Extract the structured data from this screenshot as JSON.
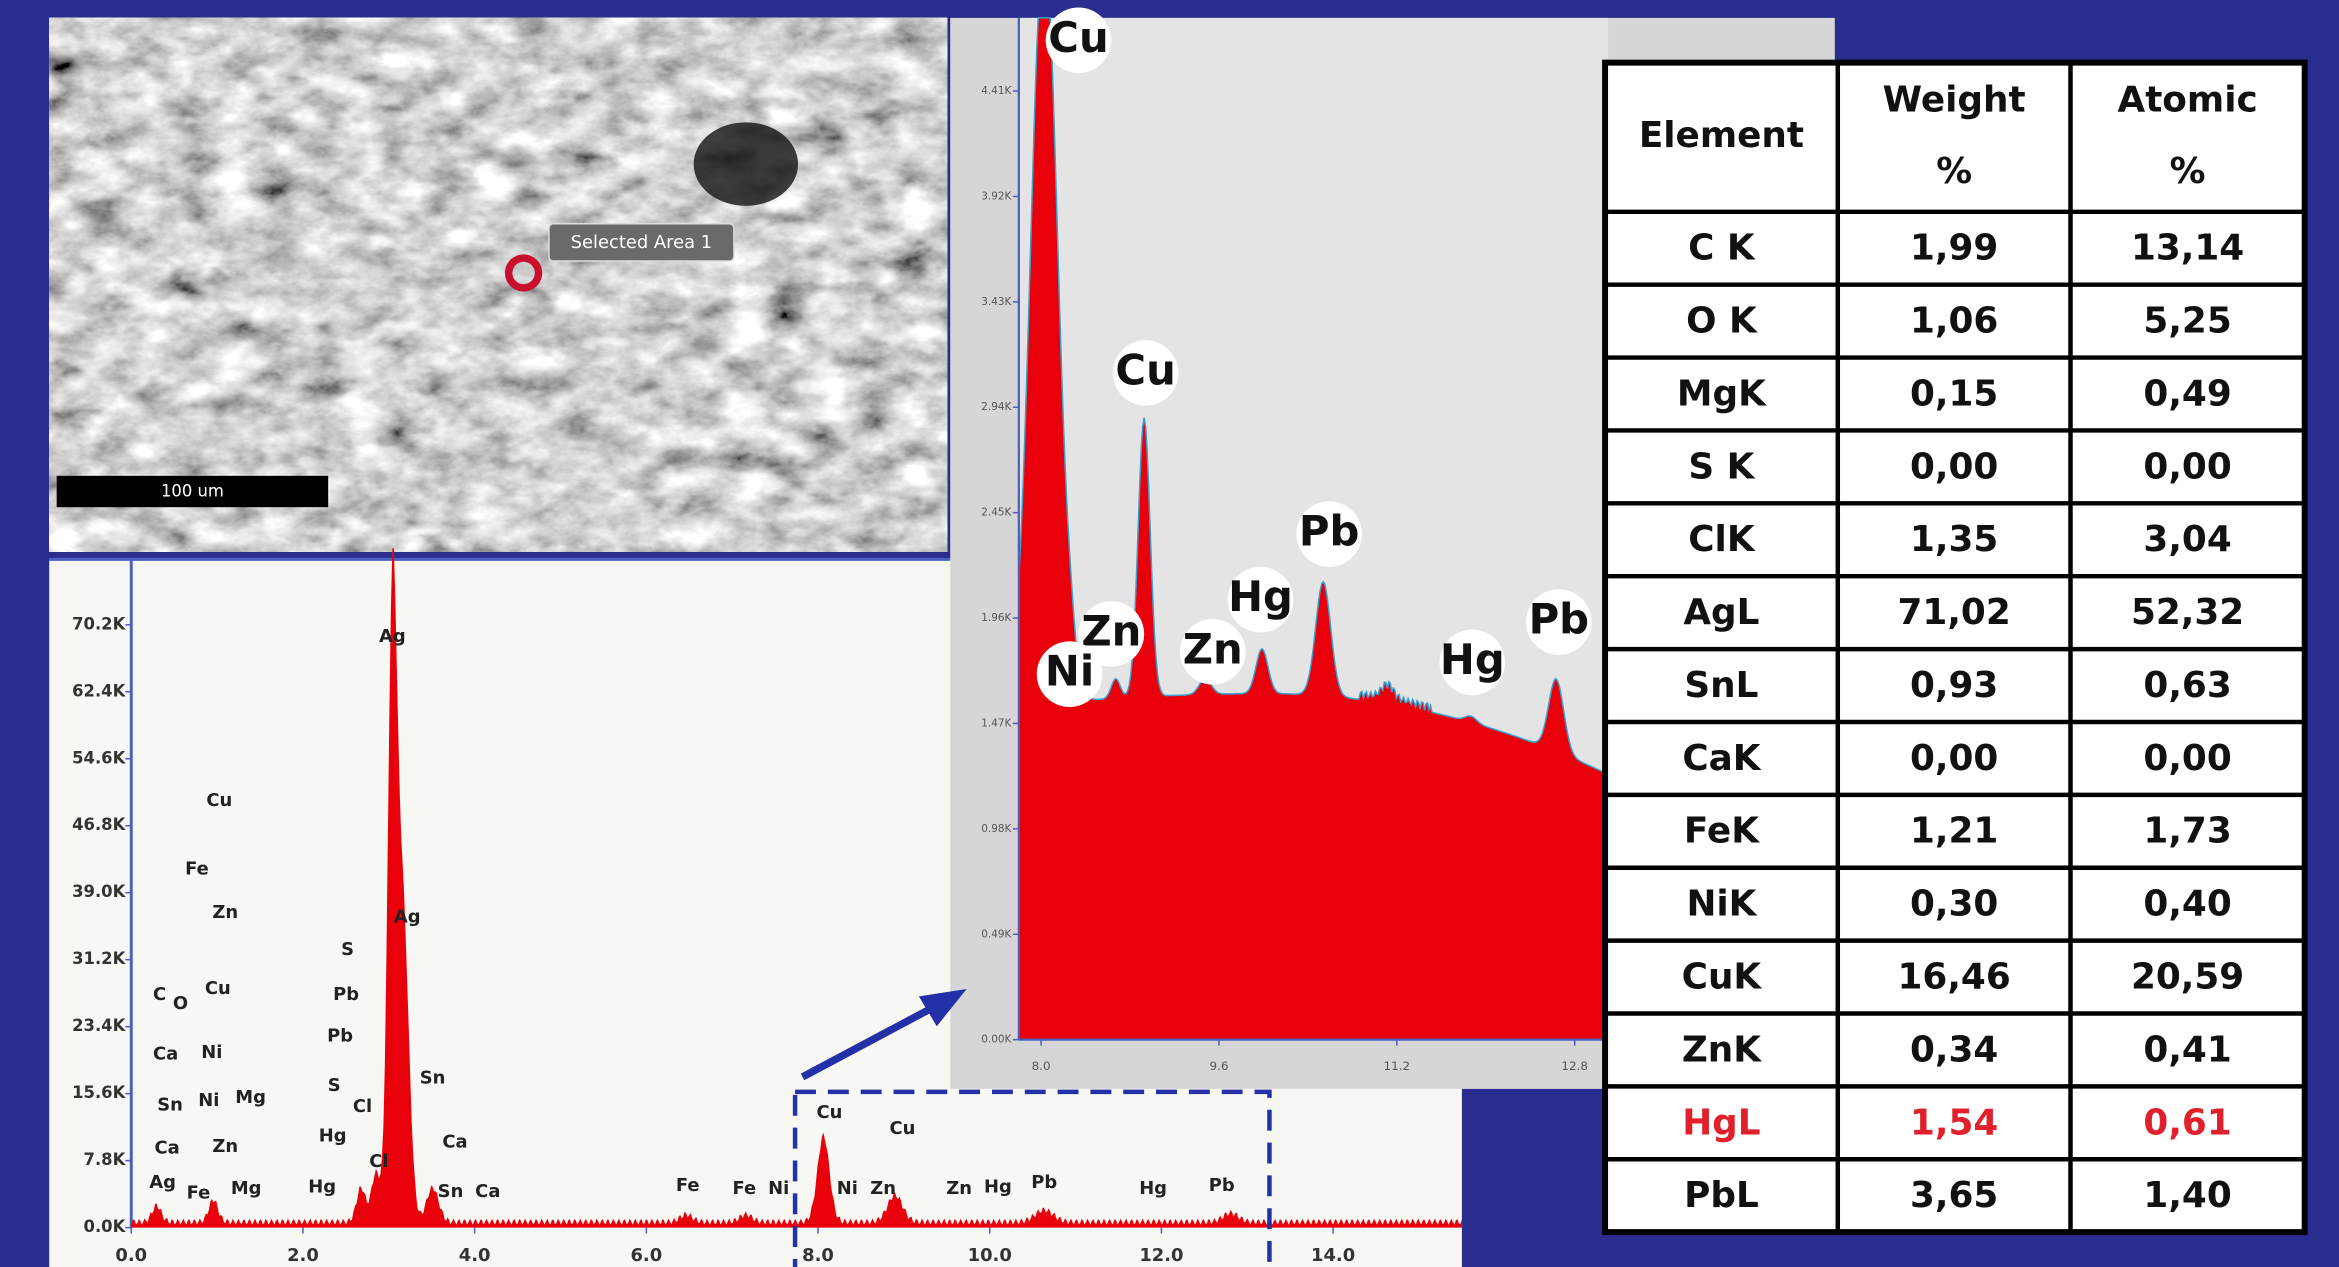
{
  "micrograph": {
    "area_label": "Selected Area 1",
    "scale_bar": "100 um"
  },
  "spectrum": {
    "xlim": [
      0,
      15.5
    ],
    "ylim": [
      0,
      77300
    ],
    "xticks": [
      {
        "value": 0,
        "label": "0.0"
      },
      {
        "value": 2,
        "label": "2.0"
      },
      {
        "value": 4,
        "label": "4.0"
      },
      {
        "value": 6,
        "label": "6.0"
      },
      {
        "value": 8,
        "label": "8.0"
      },
      {
        "value": 10,
        "label": "10.0"
      },
      {
        "value": 12,
        "label": "12.0"
      },
      {
        "value": 14,
        "label": "14.0"
      }
    ],
    "yticks": [
      {
        "value": 0,
        "label": "0.0K"
      },
      {
        "value": 7800,
        "label": "7.8K"
      },
      {
        "value": 15600,
        "label": "15.6K"
      },
      {
        "value": 23400,
        "label": "23.4K"
      },
      {
        "value": 31200,
        "label": "31.2K"
      },
      {
        "value": 39000,
        "label": "39.0K"
      },
      {
        "value": 46800,
        "label": "46.8K"
      },
      {
        "value": 54600,
        "label": "54.6K"
      },
      {
        "value": 62400,
        "label": "62.4K"
      },
      {
        "value": 70200,
        "label": "70.2K"
      }
    ],
    "peak_labels": [
      "Ag",
      "Cu",
      "Fe",
      "Zn",
      "S",
      "Ag",
      "Pb",
      "C",
      "O",
      "Cu",
      "Pb",
      "Ca",
      "Ni",
      "S",
      "Cl",
      "Sn",
      "Sn",
      "Ni",
      "Mg",
      "Hg",
      "Ca",
      "Zn",
      "Cl",
      "Ca",
      "Ag",
      "Fe",
      "Mg",
      "Hg",
      "Sn",
      "Ca",
      "Fe",
      "Fe",
      "Ni",
      "Cu",
      "Cu",
      "Ni",
      "Zn",
      "Zn",
      "Hg",
      "Pb",
      "Hg",
      "Pb"
    ]
  },
  "zoom": {
    "xlim": [
      7.8,
      13.1
    ],
    "ylim": [
      0,
      4750
    ],
    "xticks": [
      {
        "value": 8,
        "label": "8.0"
      },
      {
        "value": 9.6,
        "label": "9.6"
      },
      {
        "value": 11.2,
        "label": "11.2"
      },
      {
        "value": 12.8,
        "label": "12.8"
      }
    ],
    "yticks": [
      {
        "value": 0,
        "label": "0.00K"
      },
      {
        "value": 490,
        "label": "0.49K"
      },
      {
        "value": 980,
        "label": "0.98K"
      },
      {
        "value": 1470,
        "label": "1.47K"
      },
      {
        "value": 1960,
        "label": "1.96K"
      },
      {
        "value": 2450,
        "label": "2.45K"
      },
      {
        "value": 2940,
        "label": "2.94K"
      },
      {
        "value": 3430,
        "label": "3.43K"
      },
      {
        "value": 3920,
        "label": "3.92K"
      },
      {
        "value": 4410,
        "label": "4.41K"
      }
    ],
    "peak_labels": [
      "Cu",
      "Cu",
      "Pb",
      "Hg",
      "Zn",
      "Ni",
      "Zn",
      "Hg",
      "Pb"
    ]
  },
  "table": {
    "header": [
      [
        "Element"
      ],
      [
        "Weight",
        "%"
      ],
      [
        "Atomic",
        "%"
      ]
    ],
    "rows": [
      [
        "C K",
        "1,99",
        "13,14"
      ],
      [
        "O K",
        "1,06",
        "5,25"
      ],
      [
        "MgK",
        "0,15",
        "0,49"
      ],
      [
        "S K",
        "0,00",
        "0,00"
      ],
      [
        "ClK",
        "1,35",
        "3,04"
      ],
      [
        "AgL",
        "71,02",
        "52,32"
      ],
      [
        "SnL",
        "0,93",
        "0,63"
      ],
      [
        "CaK",
        "0,00",
        "0,00"
      ],
      [
        "FeK",
        "1,21",
        "1,73"
      ],
      [
        "NiK",
        "0,30",
        "0,40"
      ],
      [
        "CuK",
        "16,46",
        "20,59"
      ],
      [
        "ZnK",
        "0,34",
        "0,41"
      ],
      [
        "HgL",
        "1,54",
        "0,61"
      ],
      [
        "PbL",
        "3,65",
        "1,40"
      ]
    ],
    "highlight_color": "#e0202a"
  }
}
